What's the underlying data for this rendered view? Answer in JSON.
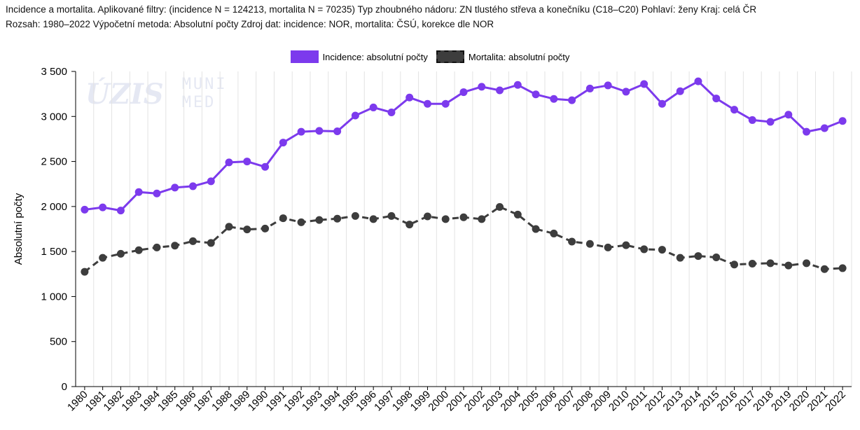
{
  "header": {
    "line1": "Incidence a mortalita. Aplikované filtry: (incidence N = 124213, mortalita N = 70235) Typ zhoubného nádoru: ZN tlustého střeva a konečníku (C18–C20) Pohlaví: ženy Kraj: celá ČR",
    "line2": "Rozsah: 1980–2022 Výpočetní metoda: Absolutní počty Zdroj dat: incidence: NOR, mortalita: ČSÚ, korekce dle NOR"
  },
  "watermark": {
    "uzis": "ÚZIS",
    "muni_top": "MUNI",
    "muni_bottom": "MED"
  },
  "chart_data": {
    "type": "line",
    "ylabel": "Absolutní počty",
    "xlabel": "",
    "ylim": [
      0,
      3500
    ],
    "yticks": [
      0,
      500,
      1000,
      1500,
      2000,
      2500,
      3000,
      3500
    ],
    "ytick_labels": [
      "0",
      "500",
      "1 000",
      "1 500",
      "2 000",
      "2 500",
      "3 000",
      "3 500"
    ],
    "grid": "vertical",
    "legend_position": "top-center",
    "x": [
      "1980",
      "1981",
      "1982",
      "1983",
      "1984",
      "1985",
      "1986",
      "1987",
      "1988",
      "1989",
      "1990",
      "1991",
      "1992",
      "1993",
      "1994",
      "1995",
      "1996",
      "1997",
      "1998",
      "1999",
      "2000",
      "2001",
      "2002",
      "2003",
      "2004",
      "2005",
      "2006",
      "2007",
      "2008",
      "2009",
      "2010",
      "2011",
      "2012",
      "2013",
      "2014",
      "2015",
      "2016",
      "2017",
      "2018",
      "2019",
      "2020",
      "2021",
      "2022"
    ],
    "series": [
      {
        "name": "Incidence: absolutní počty",
        "color": "#7c3aed",
        "style": "solid",
        "values": [
          1965,
          1990,
          1955,
          2160,
          2145,
          2210,
          2225,
          2280,
          2490,
          2500,
          2440,
          2710,
          2830,
          2840,
          2835,
          3010,
          3100,
          3045,
          3210,
          3140,
          3140,
          3270,
          3330,
          3290,
          3350,
          3245,
          3195,
          3180,
          3310,
          3345,
          3275,
          3360,
          3140,
          3280,
          3390,
          3200,
          3075,
          2960,
          2940,
          3020,
          2830,
          2870,
          2950
        ]
      },
      {
        "name": "Mortalita: absolutní počty",
        "color": "#3d3d3d",
        "style": "dashed",
        "values": [
          1275,
          1430,
          1475,
          1515,
          1545,
          1565,
          1615,
          1595,
          1775,
          1745,
          1755,
          1870,
          1825,
          1850,
          1865,
          1895,
          1860,
          1895,
          1800,
          1890,
          1860,
          1880,
          1860,
          1995,
          1910,
          1750,
          1700,
          1610,
          1585,
          1545,
          1570,
          1525,
          1520,
          1430,
          1450,
          1435,
          1355,
          1365,
          1370,
          1345,
          1370,
          1305,
          1315
        ]
      }
    ]
  }
}
